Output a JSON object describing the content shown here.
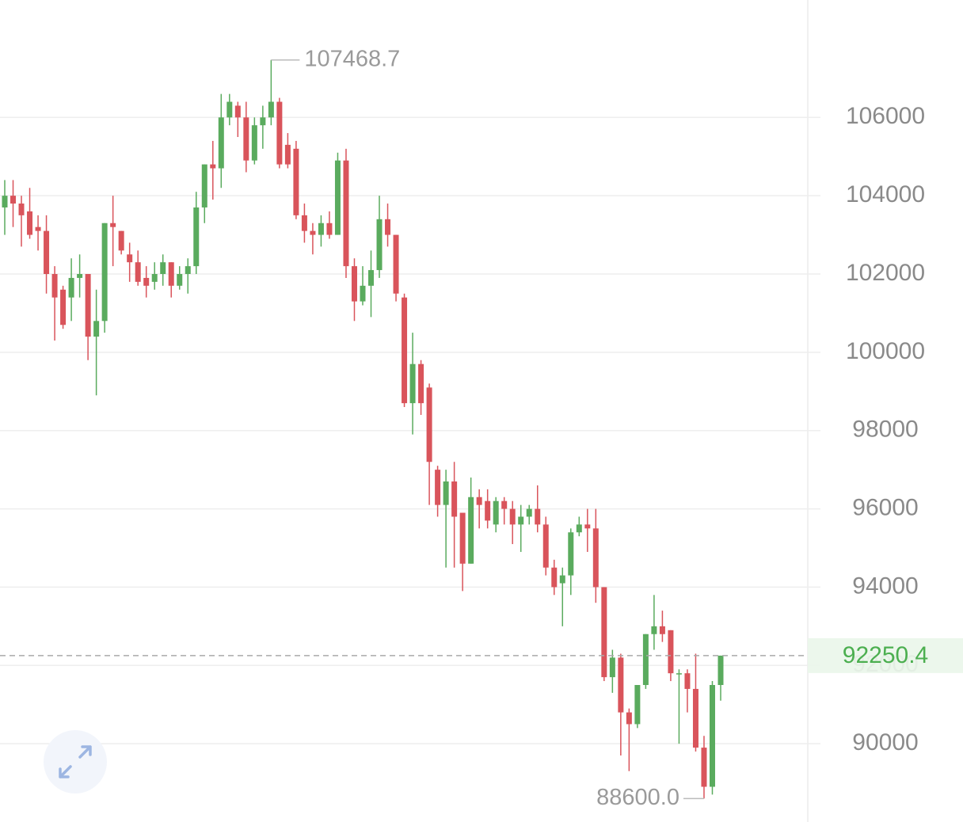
{
  "chart_data": {
    "type": "candlestick",
    "series": [
      {
        "up_color": "#5aab5e",
        "down_color": "#d9545b",
        "open": [
          103700,
          104000,
          103800,
          103600,
          103200,
          103100,
          102000,
          101600,
          101400,
          101900,
          102000,
          100400,
          100800,
          103300,
          103100,
          102500,
          102300,
          101900,
          101800,
          102000,
          102300,
          101700,
          102000,
          102200,
          103700,
          104800,
          104700,
          106000,
          106300,
          106000,
          104900,
          105800,
          106000,
          106400,
          105300,
          105200,
          103500,
          103100,
          103000,
          103300,
          103000,
          104900,
          102200,
          101300,
          101700,
          102100,
          103400,
          103000,
          101400,
          98700,
          99700,
          99100,
          97000,
          96100,
          96700,
          95900,
          94600,
          96300,
          96200,
          95600,
          96200,
          96000,
          95600,
          95800,
          96000,
          95600,
          94500,
          94100,
          94300,
          95400,
          95600,
          95500,
          94000,
          91700,
          92200,
          90800,
          90500,
          91500,
          92800,
          93000,
          92900,
          91800,
          91800,
          91400,
          89900,
          88900,
          91500
        ],
        "high": [
          104400,
          104400,
          104000,
          104200,
          103500,
          103500,
          102200,
          101700,
          102400,
          102500,
          102000,
          101600,
          103300,
          104000,
          103100,
          102800,
          102600,
          102200,
          102300,
          102500,
          102300,
          102200,
          102400,
          104100,
          104800,
          105400,
          106600,
          106600,
          106400,
          106400,
          106000,
          106300,
          107468.7,
          106500,
          105600,
          105400,
          103800,
          103300,
          103500,
          103600,
          105100,
          105200,
          102400,
          102200,
          102600,
          104000,
          103800,
          103000,
          101500,
          100500,
          99800,
          99200,
          97100,
          97000,
          97200,
          95900,
          96800,
          96500,
          96500,
          96300,
          96300,
          96200,
          96100,
          96100,
          96600,
          95800,
          94700,
          94500,
          95500,
          95800,
          96000,
          96000,
          94000,
          92400,
          92300,
          90900,
          91500,
          92800,
          93800,
          93400,
          92900,
          91900,
          91900,
          92300,
          90200,
          91600,
          92250.4
        ],
        "low": [
          103000,
          103200,
          102700,
          102900,
          102600,
          101500,
          100300,
          100600,
          100800,
          101400,
          99800,
          98900,
          100500,
          102200,
          102500,
          101800,
          101700,
          101400,
          101600,
          101700,
          101400,
          101600,
          101500,
          102000,
          103300,
          103900,
          104200,
          105800,
          105500,
          104600,
          104800,
          105200,
          105800,
          104700,
          104700,
          103400,
          102800,
          102500,
          102700,
          102900,
          103000,
          101900,
          100800,
          101200,
          100900,
          101900,
          102700,
          101300,
          98600,
          97900,
          98400,
          96100,
          95800,
          94500,
          94500,
          93900,
          94600,
          95500,
          95500,
          95400,
          95600,
          95100,
          94900,
          95600,
          95400,
          94300,
          93800,
          93000,
          93800,
          95300,
          94900,
          93600,
          91600,
          91300,
          89700,
          89300,
          90400,
          91400,
          92400,
          92600,
          91600,
          90000,
          90800,
          89800,
          88600,
          88700,
          91100
        ],
        "close": [
          104000,
          103800,
          103500,
          103000,
          103100,
          102000,
          101400,
          100700,
          101900,
          102000,
          100400,
          100800,
          103300,
          103200,
          102600,
          102300,
          101800,
          101700,
          102000,
          102300,
          101700,
          102000,
          102200,
          103700,
          104800,
          104700,
          106000,
          106400,
          106000,
          104900,
          105800,
          106000,
          106400,
          104800,
          104800,
          103500,
          103100,
          103000,
          103300,
          103000,
          104900,
          102200,
          101300,
          101700,
          102100,
          103400,
          103000,
          101500,
          98700,
          99700,
          98700,
          97200,
          96100,
          96700,
          95800,
          94600,
          96300,
          96100,
          95700,
          96200,
          96000,
          95600,
          95800,
          96000,
          95600,
          94500,
          94000,
          94300,
          95400,
          95600,
          95500,
          94000,
          91700,
          92200,
          90800,
          90500,
          91500,
          92800,
          93000,
          92800,
          91800,
          91800,
          91400,
          89900,
          88900,
          91500,
          92250.4
        ]
      }
    ],
    "ylim": [
      88000,
      109000
    ],
    "yticks": [
      90000,
      92000,
      94000,
      96000,
      98000,
      100000,
      102000,
      104000,
      106000
    ],
    "grid": true,
    "high_label": 107468.7,
    "low_label": {
      "value": 88600,
      "label": "88600.0"
    },
    "last_price": 92250.4,
    "last_price_color": "#4caf50"
  }
}
